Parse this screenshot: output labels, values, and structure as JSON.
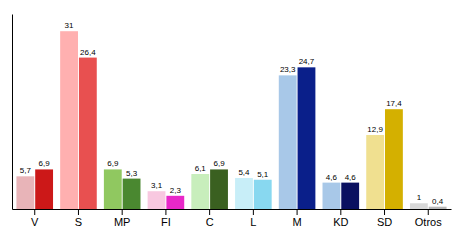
{
  "chart_data": {
    "type": "bar",
    "categories": [
      "V",
      "S",
      "MP",
      "FI",
      "C",
      "L",
      "M",
      "KD",
      "SD",
      "Otros"
    ],
    "series": [
      {
        "values": [
          5.7,
          31.0,
          6.9,
          3.1,
          6.1,
          5.4,
          23.3,
          4.6,
          12.9,
          1.0
        ],
        "value_labels": [
          "5,7",
          "31",
          "6,9",
          "3,1",
          "6,1",
          "5,4",
          "23,3",
          "4,6",
          "12,9",
          "1"
        ],
        "colors": [
          "#e8b4b8",
          "#ffb0b0",
          "#90c860",
          "#f8c8e0",
          "#c8eebc",
          "#c8eef8",
          "#a8c8e8",
          "#a8c8e8",
          "#f0e090",
          "#d8d8d8"
        ]
      },
      {
        "values": [
          6.9,
          26.4,
          5.3,
          2.3,
          6.9,
          5.1,
          24.7,
          4.6,
          17.4,
          0.4
        ],
        "value_labels": [
          "6,9",
          "26,4",
          "5,3",
          "2,3",
          "6,9",
          "5,1",
          "24,7",
          "4,6",
          "17,4",
          "0,4"
        ],
        "colors": [
          "#cc1818",
          "#e85050",
          "#4a8830",
          "#e828c8",
          "#3a6020",
          "#88d8f0",
          "#0a1f8a",
          "#0a1060",
          "#d4b000",
          "#b8b8b8"
        ]
      }
    ],
    "ylim": [
      0,
      34
    ],
    "yticks": [],
    "grid": false,
    "data_labels": true,
    "tick_labels": "x"
  }
}
